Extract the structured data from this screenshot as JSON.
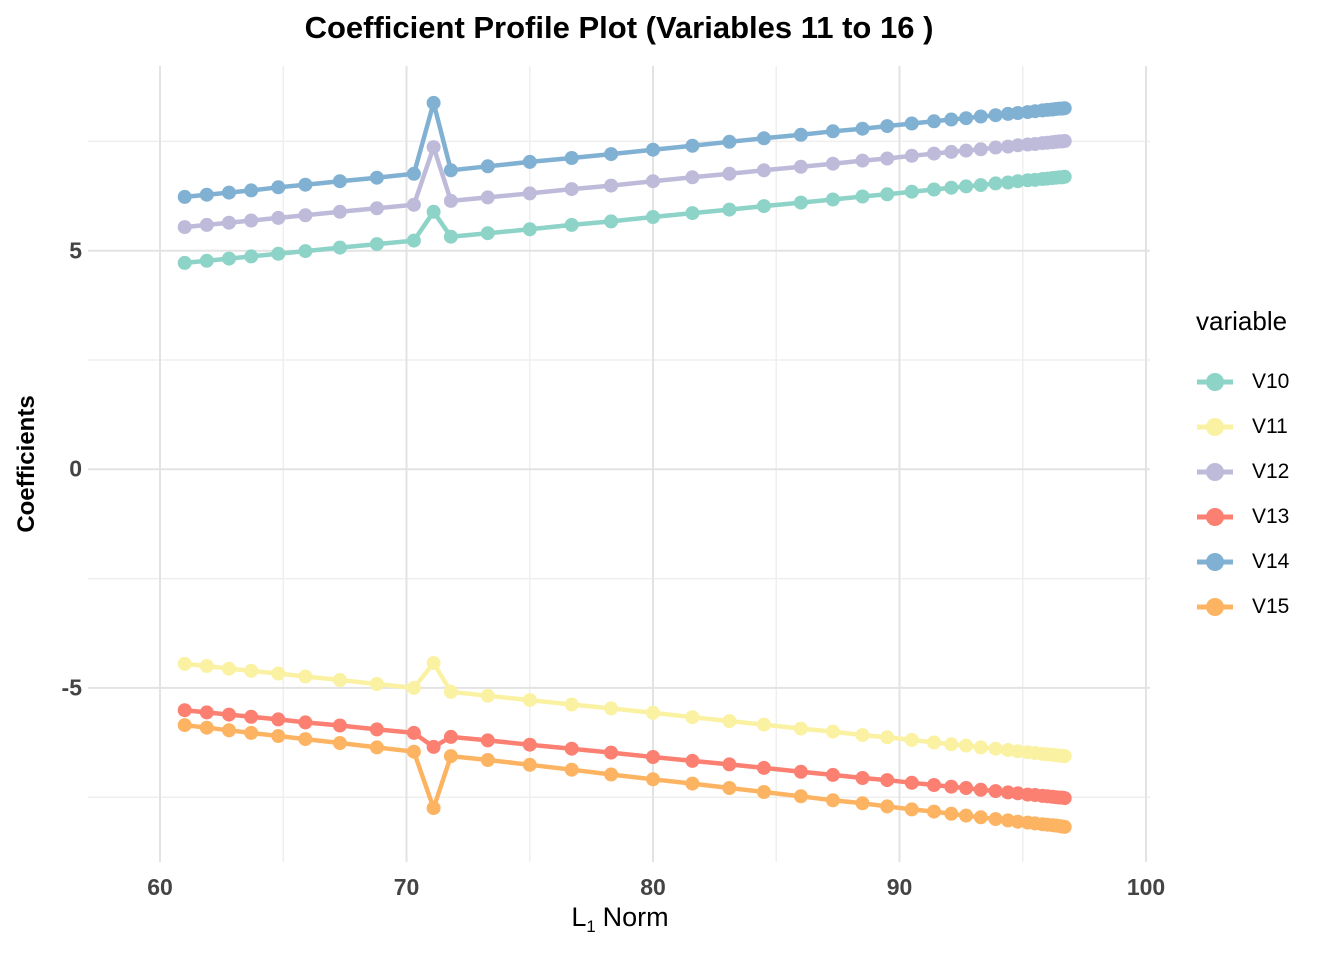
{
  "chart_data": {
    "type": "line",
    "title": "Coefficient Profile Plot (Variables 11 to 16 )",
    "xlabel": "L1 Norm",
    "xlabel_parts": {
      "prefix": "L",
      "sub": "1",
      "suffix": "Norm"
    },
    "ylabel": "Coefficients",
    "legend_title": "variable",
    "legend_position": "right",
    "grid": true,
    "x_ticks": [
      60,
      70,
      80,
      90,
      100
    ],
    "x_minor_ticks": [
      65,
      75,
      85,
      95
    ],
    "y_ticks": [
      5,
      0,
      -5
    ],
    "y_minor_ticks": [
      7.5,
      2.5,
      -2.5,
      -7.5
    ],
    "xlim": [
      57.1,
      100.2
    ],
    "ylim": [
      -9.0,
      9.2
    ],
    "marker": "circle",
    "x": [
      61.0,
      61.9,
      62.8,
      63.7,
      64.8,
      65.9,
      67.3,
      68.8,
      70.3,
      71.1,
      71.8,
      73.3,
      75.0,
      76.7,
      78.3,
      80.0,
      81.6,
      83.1,
      84.5,
      86.0,
      87.3,
      88.5,
      89.5,
      90.5,
      91.4,
      92.1,
      92.7,
      93.3,
      93.9,
      94.4,
      94.8,
      95.2,
      95.5,
      95.8,
      96.0,
      96.2,
      96.35,
      96.5,
      96.6,
      96.7
    ],
    "series": [
      {
        "name": "V10",
        "color": "#8DD3C7",
        "values": [
          4.72,
          4.77,
          4.82,
          4.87,
          4.93,
          4.99,
          5.07,
          5.15,
          5.23,
          5.89,
          5.32,
          5.4,
          5.49,
          5.59,
          5.67,
          5.77,
          5.86,
          5.94,
          6.02,
          6.1,
          6.17,
          6.24,
          6.29,
          6.35,
          6.4,
          6.44,
          6.47,
          6.5,
          6.54,
          6.56,
          6.59,
          6.61,
          6.62,
          6.64,
          6.65,
          6.66,
          6.67,
          6.68,
          6.68,
          6.69
        ]
      },
      {
        "name": "V11",
        "color": "#FAF2A2",
        "values": [
          -4.45,
          -4.5,
          -4.56,
          -4.61,
          -4.67,
          -4.74,
          -4.82,
          -4.91,
          -5.0,
          -4.43,
          -5.09,
          -5.18,
          -5.28,
          -5.38,
          -5.47,
          -5.57,
          -5.67,
          -5.76,
          -5.84,
          -5.93,
          -6.0,
          -6.08,
          -6.13,
          -6.19,
          -6.25,
          -6.29,
          -6.32,
          -6.36,
          -6.39,
          -6.42,
          -6.45,
          -6.47,
          -6.49,
          -6.51,
          -6.52,
          -6.53,
          -6.54,
          -6.55,
          -6.55,
          -6.56
        ]
      },
      {
        "name": "V12",
        "color": "#BEBADA",
        "values": [
          5.54,
          5.59,
          5.64,
          5.69,
          5.75,
          5.81,
          5.89,
          5.97,
          6.05,
          7.37,
          6.14,
          6.22,
          6.31,
          6.41,
          6.49,
          6.59,
          6.68,
          6.76,
          6.84,
          6.92,
          6.99,
          7.06,
          7.11,
          7.17,
          7.22,
          7.26,
          7.29,
          7.32,
          7.36,
          7.38,
          7.41,
          7.43,
          7.44,
          7.46,
          7.47,
          7.48,
          7.49,
          7.5,
          7.5,
          7.51
        ]
      },
      {
        "name": "V13",
        "color": "#FB8072",
        "values": [
          -5.51,
          -5.56,
          -5.61,
          -5.66,
          -5.72,
          -5.79,
          -5.86,
          -5.95,
          -6.03,
          -6.35,
          -6.12,
          -6.2,
          -6.3,
          -6.39,
          -6.48,
          -6.58,
          -6.67,
          -6.75,
          -6.83,
          -6.92,
          -6.99,
          -7.06,
          -7.11,
          -7.17,
          -7.22,
          -7.26,
          -7.29,
          -7.33,
          -7.36,
          -7.39,
          -7.41,
          -7.44,
          -7.45,
          -7.47,
          -7.48,
          -7.49,
          -7.5,
          -7.51,
          -7.51,
          -7.52
        ]
      },
      {
        "name": "V14",
        "color": "#80B1D3",
        "values": [
          6.23,
          6.28,
          6.33,
          6.38,
          6.45,
          6.51,
          6.59,
          6.67,
          6.76,
          8.38,
          6.84,
          6.93,
          7.03,
          7.12,
          7.21,
          7.31,
          7.4,
          7.49,
          7.57,
          7.65,
          7.73,
          7.79,
          7.85,
          7.91,
          7.96,
          8.0,
          8.03,
          8.07,
          8.1,
          8.13,
          8.15,
          8.17,
          8.19,
          8.21,
          8.22,
          8.23,
          8.24,
          8.25,
          8.25,
          8.26
        ]
      },
      {
        "name": "V15",
        "color": "#FDB462",
        "values": [
          -5.85,
          -5.91,
          -5.97,
          -6.03,
          -6.1,
          -6.17,
          -6.26,
          -6.36,
          -6.46,
          -7.75,
          -6.56,
          -6.65,
          -6.76,
          -6.87,
          -6.98,
          -7.09,
          -7.19,
          -7.29,
          -7.38,
          -7.48,
          -7.57,
          -7.64,
          -7.71,
          -7.78,
          -7.83,
          -7.88,
          -7.92,
          -7.96,
          -8.0,
          -8.03,
          -8.06,
          -8.08,
          -8.1,
          -8.12,
          -8.13,
          -8.14,
          -8.15,
          -8.16,
          -8.17,
          -8.18
        ]
      }
    ],
    "style": {
      "grid_major_color": "#E3E3E3",
      "grid_minor_color": "#EFEFEF",
      "tick_label_color": "#444444",
      "background": "#FFFFFF"
    }
  }
}
